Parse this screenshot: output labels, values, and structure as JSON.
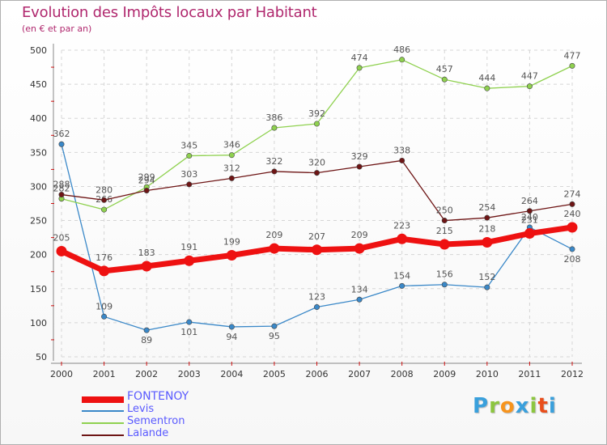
{
  "title": "Evolution des Impôts locaux par Habitant",
  "subtitle": "(en € et par an)",
  "chart_data": {
    "type": "line",
    "title": "Evolution des Impôts locaux par Habitant",
    "subtitle": "(en € et par an)",
    "xlabel": "",
    "ylabel": "",
    "ylim": [
      50,
      500
    ],
    "yticks": [
      50,
      100,
      150,
      200,
      250,
      300,
      350,
      400,
      450,
      500
    ],
    "x": [
      "2000",
      "2001",
      "2002",
      "2003",
      "2004",
      "2005",
      "2006",
      "2007",
      "2008",
      "2009",
      "2010",
      "2011",
      "2012"
    ],
    "series": [
      {
        "name": "Levis",
        "color": "#3a88c8",
        "values": [
          362,
          109,
          89,
          101,
          94,
          95,
          123,
          134,
          154,
          156,
          152,
          240,
          208
        ]
      },
      {
        "name": "Sementron",
        "color": "#8fd14f",
        "values": [
          282,
          266,
          299,
          345,
          346,
          386,
          392,
          474,
          486,
          457,
          444,
          447,
          477
        ]
      },
      {
        "name": "Lalande",
        "color": "#6e1515",
        "values": [
          288,
          280,
          294,
          303,
          312,
          322,
          320,
          329,
          338,
          250,
          254,
          264,
          274
        ]
      },
      {
        "name": "FONTENOY",
        "color": "#ee1111",
        "values": [
          205,
          176,
          183,
          191,
          199,
          209,
          207,
          209,
          223,
          215,
          218,
          231,
          240
        ]
      }
    ],
    "legend": "bottom-left"
  },
  "legend": {
    "items": [
      {
        "label": "FONTENOY",
        "color": "#ee1111",
        "text_color": "#5a5aff"
      },
      {
        "label": "Levis",
        "color": "#3a88c8",
        "text_color": "#5a5aff"
      },
      {
        "label": "Sementron",
        "color": "#8fd14f",
        "text_color": "#5a5aff"
      },
      {
        "label": "Lalande",
        "color": "#6e1515",
        "text_color": "#5a5aff"
      }
    ]
  },
  "logo": {
    "letters": [
      "P",
      "r",
      "o",
      "x",
      "i",
      "t",
      "i"
    ],
    "colors": [
      "#3aa0dc",
      "#8cc63f",
      "#f7941d",
      "#3aa0dc",
      "#8cc63f",
      "#e94e1b",
      "#3aa0dc"
    ]
  }
}
